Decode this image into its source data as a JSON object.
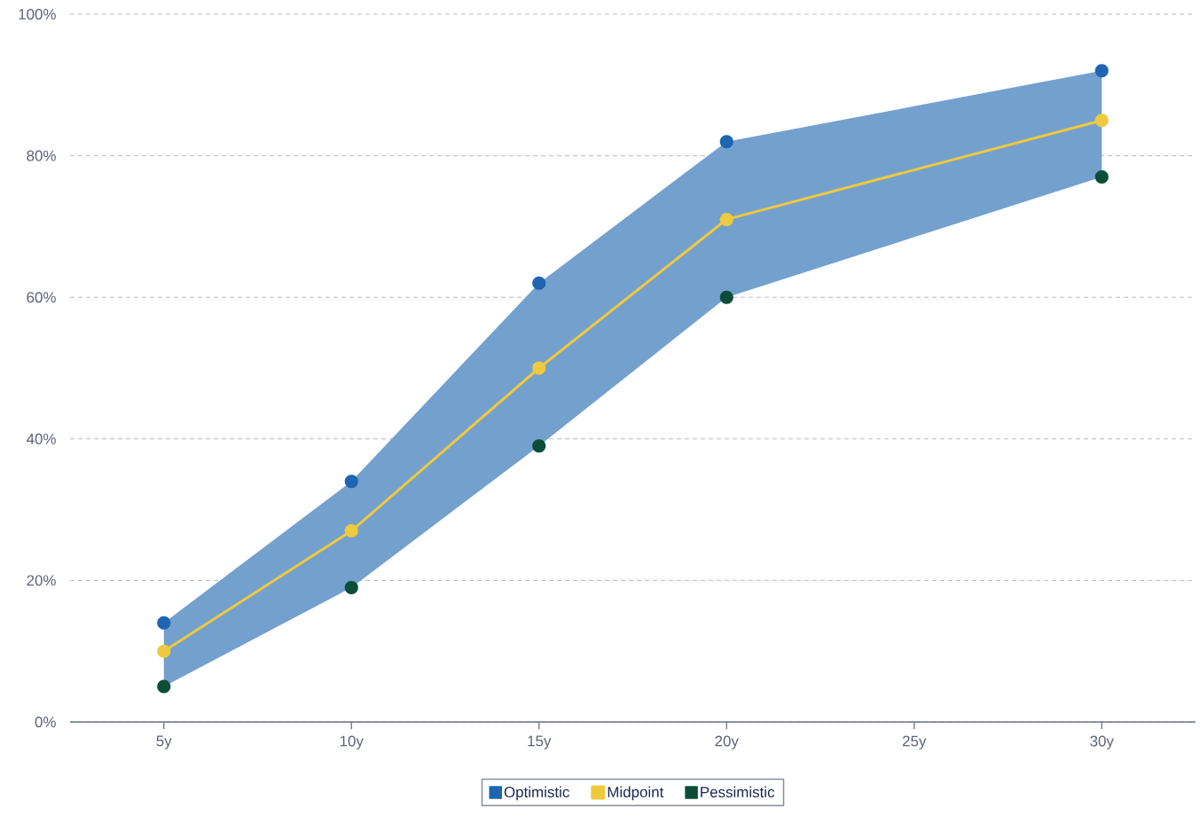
{
  "chart_data": {
    "type": "line",
    "x": [
      5,
      10,
      15,
      20,
      30
    ],
    "xlim": [
      2.5,
      32.5
    ],
    "xticks": [
      {
        "value": 5,
        "label": "5y"
      },
      {
        "value": 10,
        "label": "10y"
      },
      {
        "value": 15,
        "label": "15y"
      },
      {
        "value": 20,
        "label": "20y"
      },
      {
        "value": 25,
        "label": "25y"
      },
      {
        "value": 30,
        "label": "30y"
      }
    ],
    "ylim": [
      0,
      100
    ],
    "yticks": [
      {
        "value": 0,
        "label": "0%"
      },
      {
        "value": 20,
        "label": "20%"
      },
      {
        "value": 40,
        "label": "40%"
      },
      {
        "value": 60,
        "label": "60%"
      },
      {
        "value": 80,
        "label": "80%"
      },
      {
        "value": 100,
        "label": "100%"
      }
    ],
    "grid": "y",
    "legend": "bottom",
    "marker": "circle",
    "series": [
      {
        "name": "Optimistic",
        "type": "scatter",
        "color": "#1f65b0",
        "values": [
          14,
          34,
          62,
          82,
          92
        ]
      },
      {
        "name": "Midpoint",
        "color": "#efc93f",
        "values": [
          10,
          27,
          50,
          71,
          85
        ],
        "lower": [
          5,
          19,
          39,
          60,
          77
        ],
        "upper": [
          14,
          34,
          62,
          82,
          92
        ]
      },
      {
        "name": "Pessimistic",
        "type": "scatter",
        "color": "#0b4d38",
        "values": [
          5,
          19,
          39,
          60,
          77
        ]
      }
    ]
  }
}
